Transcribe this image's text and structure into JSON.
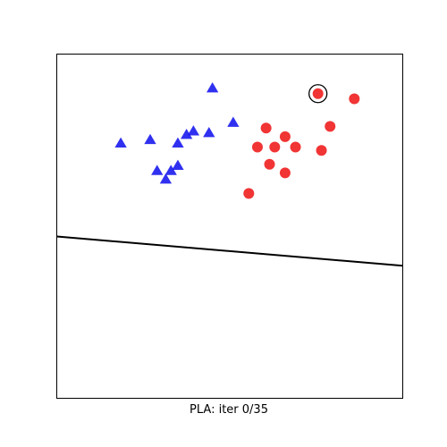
{
  "chart_data": {
    "type": "scatter",
    "caption": "PLA: iter 0/35",
    "xlim": [
      -1,
      1
    ],
    "ylim": [
      -1,
      1
    ],
    "grid": false,
    "ticks": false,
    "series": [
      {
        "marker": "triangle",
        "color": "#1a1aee",
        "points": [
          [
            -0.1,
            0.8
          ],
          [
            0.02,
            0.6
          ],
          [
            -0.12,
            0.54
          ],
          [
            -0.21,
            0.55
          ],
          [
            -0.25,
            0.53
          ],
          [
            -0.3,
            0.48
          ],
          [
            -0.46,
            0.5
          ],
          [
            -0.63,
            0.48
          ],
          [
            -0.3,
            0.35
          ],
          [
            -0.34,
            0.32
          ],
          [
            -0.42,
            0.32
          ],
          [
            -0.37,
            0.27
          ]
        ]
      },
      {
        "marker": "circle",
        "color": "#f01e1e",
        "points": [
          [
            0.51,
            0.77
          ],
          [
            0.72,
            0.74
          ],
          [
            0.58,
            0.58
          ],
          [
            0.21,
            0.57
          ],
          [
            0.32,
            0.52
          ],
          [
            0.16,
            0.46
          ],
          [
            0.26,
            0.46
          ],
          [
            0.38,
            0.46
          ],
          [
            0.53,
            0.44
          ],
          [
            0.23,
            0.36
          ],
          [
            0.32,
            0.31
          ],
          [
            0.11,
            0.19
          ]
        ]
      }
    ],
    "highlighted_point": [
      0.51,
      0.77
    ],
    "decision_boundary": {
      "from": [
        -1,
        -0.06
      ],
      "to": [
        1,
        -0.23
      ],
      "color": "#000000"
    }
  }
}
